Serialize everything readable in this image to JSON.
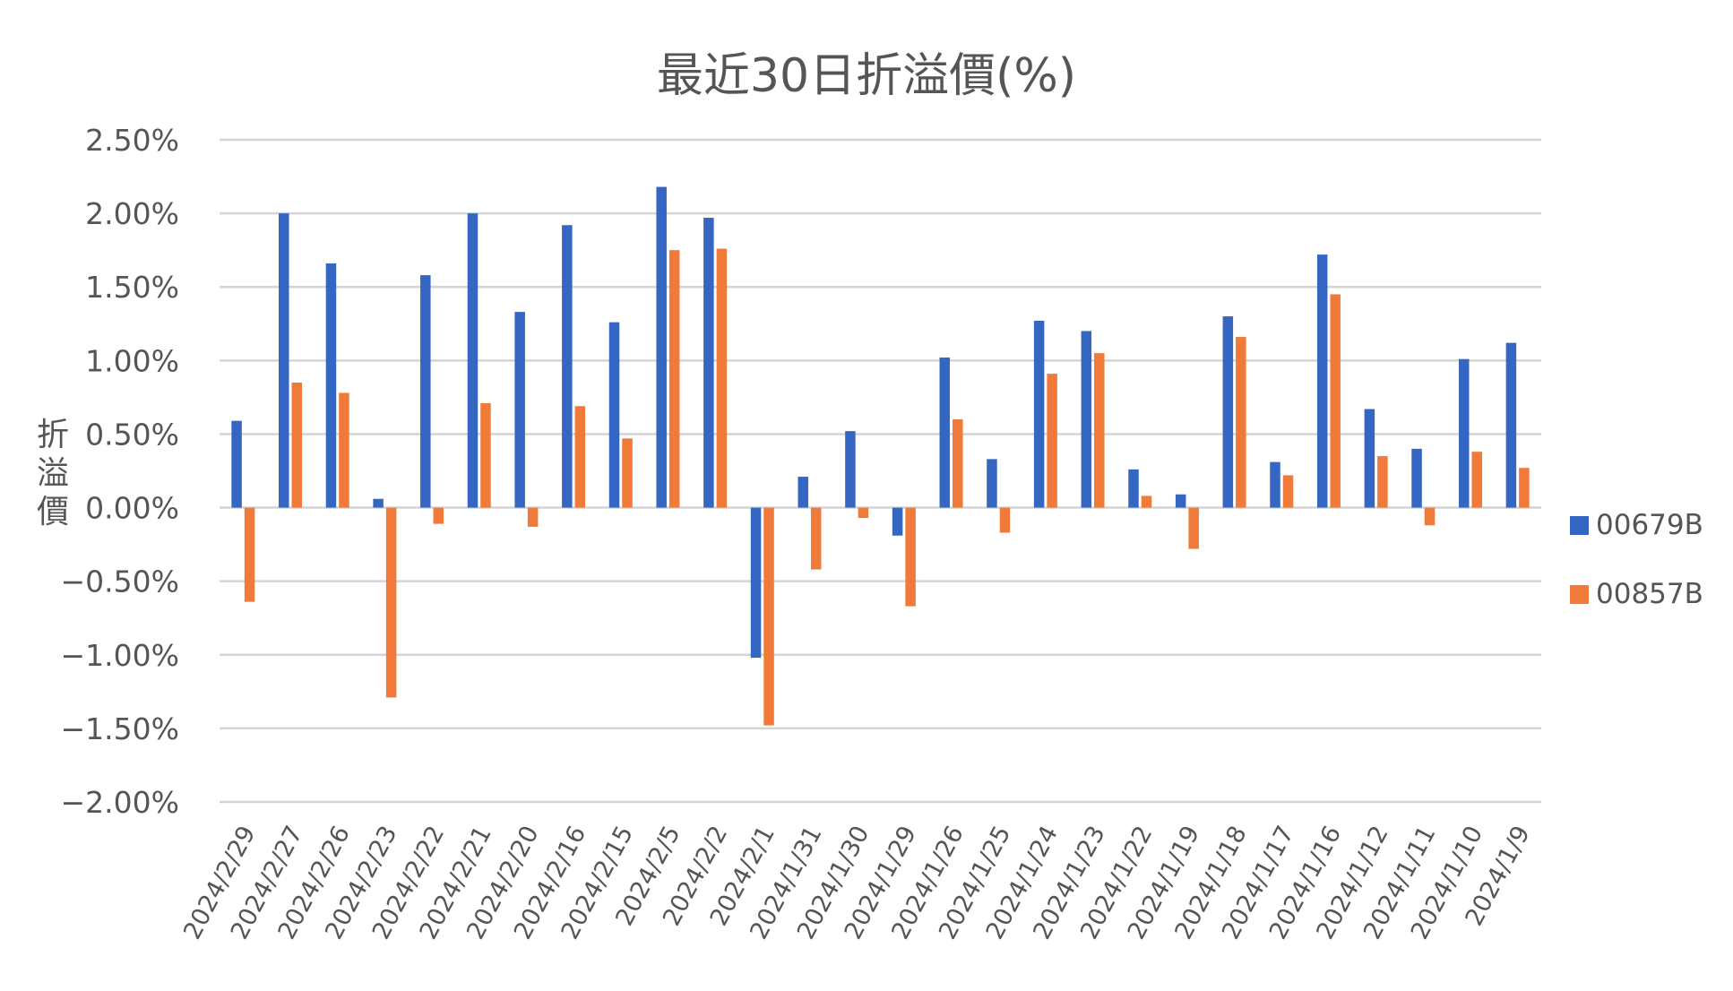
{
  "chart_data": {
    "type": "bar",
    "title": "最近30日折溢價(%)",
    "ylabel": "折溢價",
    "ylim": [
      -0.02,
      0.025
    ],
    "ytick_step": 0.005,
    "yticks": [
      "2.50%",
      "2.00%",
      "1.50%",
      "1.00%",
      "0.50%",
      "0.00%",
      "-0.50%",
      "-1.00%",
      "-1.50%",
      "-2.00%"
    ],
    "grid": true,
    "legend_position": "right",
    "categories": [
      "2024/2/29",
      "2024/2/27",
      "2024/2/26",
      "2024/2/23",
      "2024/2/22",
      "2024/2/21",
      "2024/2/20",
      "2024/2/16",
      "2024/2/15",
      "2024/2/5",
      "2024/2/2",
      "2024/2/1",
      "2024/1/31",
      "2024/1/30",
      "2024/1/29",
      "2024/1/26",
      "2024/1/25",
      "2024/1/24",
      "2024/1/23",
      "2024/1/22",
      "2024/1/19",
      "2024/1/18",
      "2024/1/17",
      "2024/1/16",
      "2024/1/12",
      "2024/1/11",
      "2024/1/10",
      "2024/1/9"
    ],
    "series": [
      {
        "name": "00679B",
        "color": "#3567c2",
        "values": [
          0.0059,
          0.02,
          0.0166,
          0.0006,
          0.0158,
          0.02,
          0.0133,
          0.0192,
          0.0126,
          0.0218,
          0.0197,
          -0.0102,
          0.0021,
          0.0052,
          -0.0019,
          0.0102,
          0.0033,
          0.0127,
          0.012,
          0.0026,
          0.0009,
          0.013,
          0.0031,
          0.0172,
          0.0067,
          0.004,
          0.0101,
          0.0112
        ]
      },
      {
        "name": "00857B",
        "color": "#ef7a3a",
        "values": [
          -0.0064,
          0.0085,
          0.0078,
          -0.0129,
          -0.0011,
          0.0071,
          -0.0013,
          0.0069,
          0.0047,
          0.0175,
          0.0176,
          -0.0148,
          -0.0042,
          -0.0007,
          -0.0067,
          0.006,
          -0.0017,
          0.0091,
          0.0105,
          0.0008,
          -0.0028,
          0.0116,
          0.0022,
          0.0145,
          0.0035,
          -0.0012,
          0.0038,
          0.0027
        ]
      }
    ]
  }
}
